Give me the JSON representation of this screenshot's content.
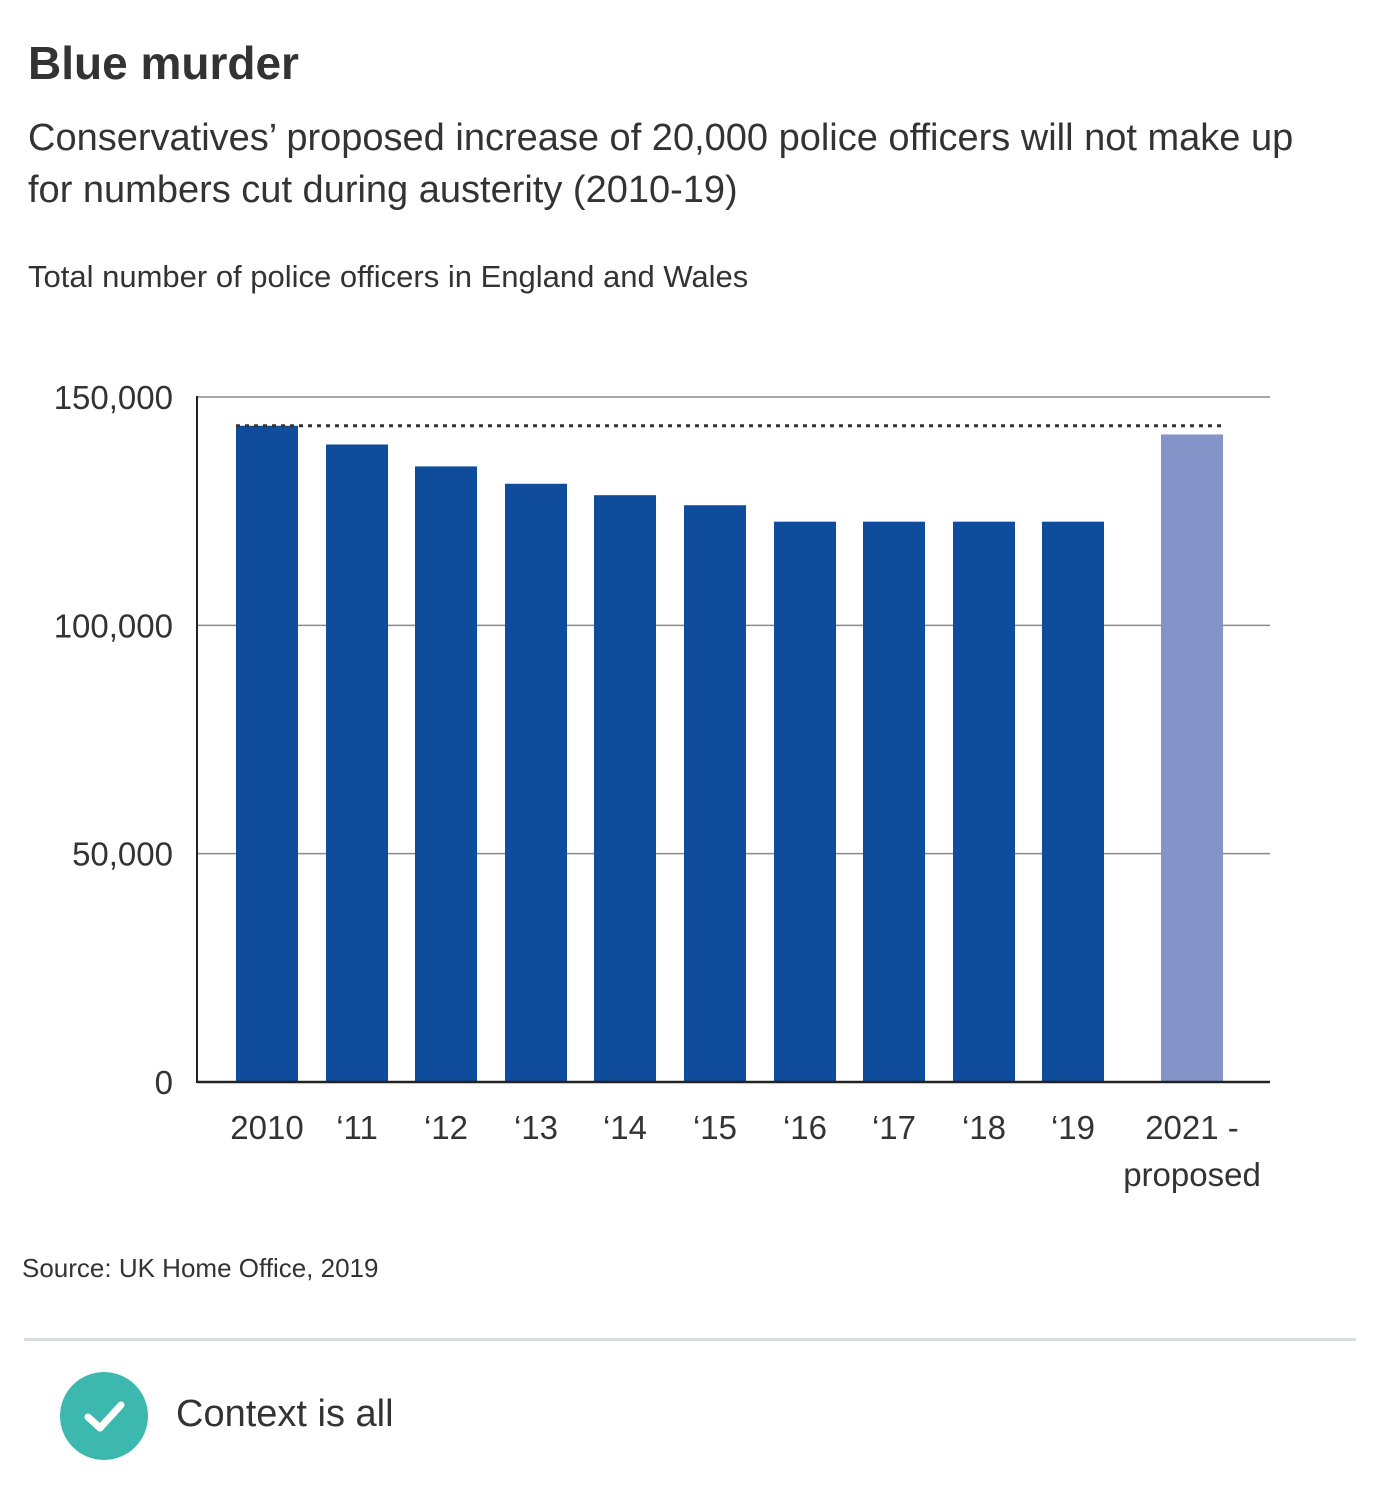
{
  "header": {
    "title": "Blue murder",
    "subtitle": "Conservatives’ proposed increase of 20,000 police officers will not make up for numbers cut during austerity (2010-19)",
    "axis_caption": "Total number of police officers in England and Wales"
  },
  "chart_data": {
    "type": "bar",
    "title": "Blue murder",
    "subtitle": "Conservatives’ proposed increase of 20,000 police officers will not make up for numbers cut during austerity (2010-19)",
    "ylabel": "Total number of police officers in England and Wales",
    "xlabel": "",
    "categories": [
      "2010",
      "‘11",
      "‘12",
      "‘13",
      "‘14",
      "‘15",
      "‘16",
      "‘17",
      "‘18",
      "‘19",
      "2021 -\nproposed"
    ],
    "values": [
      143700,
      139600,
      134800,
      131000,
      128500,
      126300,
      122700,
      122700,
      122700,
      122700,
      141800
    ],
    "bar_colors": [
      "#0f4c9b",
      "#0f4c9b",
      "#0f4c9b",
      "#0f4c9b",
      "#0f4c9b",
      "#0f4c9b",
      "#0f4c9b",
      "#0f4c9b",
      "#0f4c9b",
      "#0f4c9b",
      "#8594c8"
    ],
    "ylim": [
      0,
      150000
    ],
    "yticks": [
      0,
      50000,
      100000,
      150000
    ],
    "ytick_labels": [
      "0",
      "50,000",
      "100,000",
      "150,000"
    ],
    "reference_line": {
      "value": 143700,
      "style": "dotted"
    },
    "grid": true,
    "legend": "none"
  },
  "footer": {
    "source": "Source: UK Home Office, 2019",
    "badge_label": "Context is all",
    "badge_icon": "check-icon",
    "badge_color": "#3db8ae"
  },
  "colors": {
    "bar": "#0f4c9b",
    "proposed_bar": "#8594c8",
    "grid": "#8a8a8a",
    "axis": "#222222",
    "text": "#333333"
  }
}
